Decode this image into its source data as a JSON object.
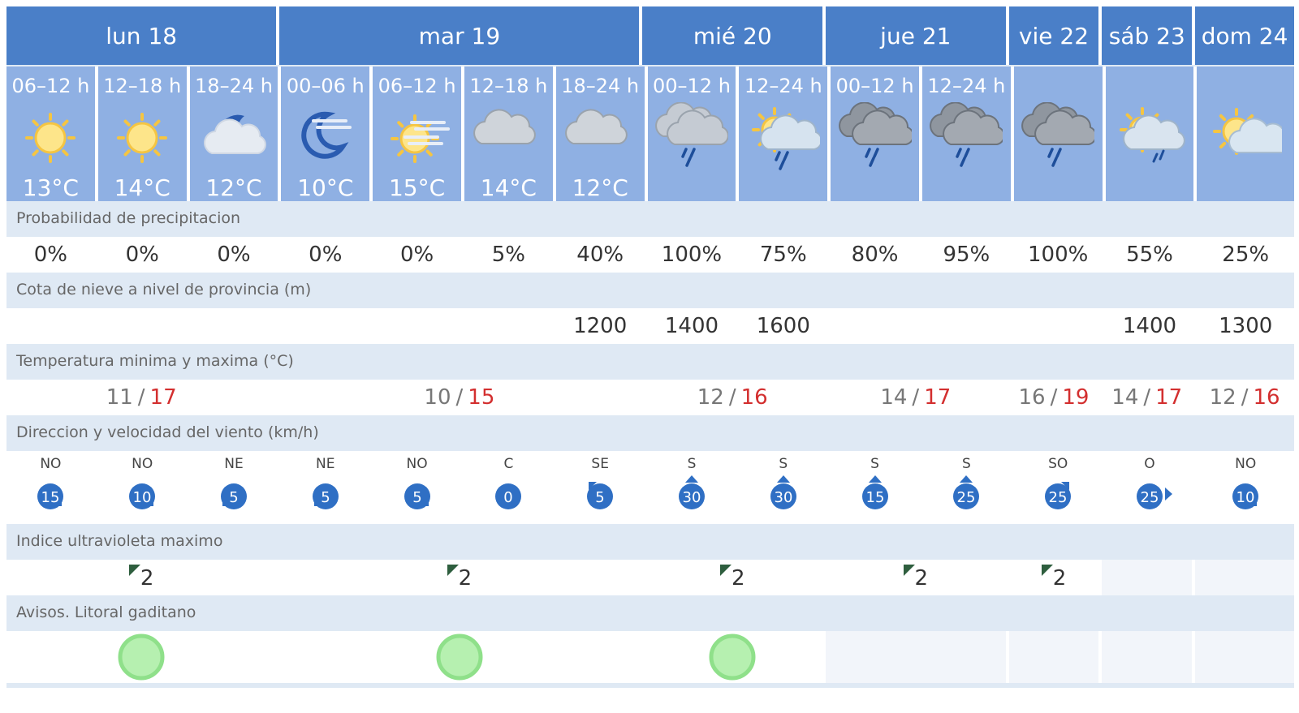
{
  "days": [
    {
      "label": "lun 18",
      "span": 3
    },
    {
      "label": "mar 19",
      "span": 4
    },
    {
      "label": "mié 20",
      "span": 2
    },
    {
      "label": "jue 21",
      "span": 2
    },
    {
      "label": "vie 22",
      "span": 1
    },
    {
      "label": "sáb 23",
      "span": 1
    },
    {
      "label": "dom 24",
      "span": 1
    }
  ],
  "periods": [
    {
      "label": "06–12 h",
      "icon": "sun-icon",
      "temp": "13°C"
    },
    {
      "label": "12–18 h",
      "icon": "sun-icon",
      "temp": "14°C"
    },
    {
      "label": "18–24 h",
      "icon": "moon-cloud-icon",
      "temp": "12°C"
    },
    {
      "label": "00–06 h",
      "icon": "moon-haze-icon",
      "temp": "10°C"
    },
    {
      "label": "06–12 h",
      "icon": "sun-haze-icon",
      "temp": "15°C"
    },
    {
      "label": "12–18 h",
      "icon": "cloud-icon",
      "temp": "14°C"
    },
    {
      "label": "18–24 h",
      "icon": "cloud-icon",
      "temp": "12°C"
    },
    {
      "label": "00–12 h",
      "icon": "cloud-rain-icon",
      "temp": ""
    },
    {
      "label": "12–24 h",
      "icon": "sun-cloud-rain-icon",
      "temp": ""
    },
    {
      "label": "00–12 h",
      "icon": "dark-cloud-rain-icon",
      "temp": ""
    },
    {
      "label": "12–24 h",
      "icon": "dark-cloud-rain-icon",
      "temp": ""
    },
    {
      "label": "",
      "icon": "dark-cloud-rain-icon",
      "temp": ""
    },
    {
      "label": "",
      "icon": "sun-cloud-drizzle-icon",
      "temp": ""
    },
    {
      "label": "",
      "icon": "sun-cloud-icon",
      "temp": ""
    }
  ],
  "sections": {
    "precip_title": "Probabilidad de precipitacion",
    "snow_title": "Cota de nieve a nivel de provincia (m)",
    "temp_title": "Temperatura minima y maxima (°C)",
    "wind_title": "Direccion y velocidad del viento (km/h)",
    "uv_title": "Indice ultravioleta maximo",
    "alerts_title": "Avisos. Litoral gaditano"
  },
  "precip": [
    "0%",
    "0%",
    "0%",
    "0%",
    "0%",
    "5%",
    "40%",
    "100%",
    "75%",
    "80%",
    "95%",
    "100%",
    "55%",
    "25%"
  ],
  "snow": [
    "",
    "",
    "",
    "",
    "",
    "",
    "1200",
    "1400",
    "1600",
    "",
    "",
    "",
    "1400",
    "1300"
  ],
  "temps": [
    {
      "min": "11",
      "max": "17",
      "sep": "/"
    },
    {
      "min": "10",
      "max": "15",
      "sep": "/"
    },
    {
      "min": "12",
      "max": "16",
      "sep": "/"
    },
    {
      "min": "14",
      "max": "17",
      "sep": "/"
    },
    {
      "min": "16",
      "max": "19",
      "sep": "/"
    },
    {
      "min": "14",
      "max": "17",
      "sep": "/"
    },
    {
      "min": "12",
      "max": "16",
      "sep": "/"
    }
  ],
  "wind": [
    {
      "dir": "NO",
      "speed": "15",
      "arrow": "se"
    },
    {
      "dir": "NO",
      "speed": "10",
      "arrow": "se"
    },
    {
      "dir": "NE",
      "speed": "5",
      "arrow": "sw"
    },
    {
      "dir": "NE",
      "speed": "5",
      "arrow": "sw"
    },
    {
      "dir": "NO",
      "speed": "5",
      "arrow": "se"
    },
    {
      "dir": "C",
      "speed": "0",
      "arrow": "none"
    },
    {
      "dir": "SE",
      "speed": "5",
      "arrow": "nw"
    },
    {
      "dir": "S",
      "speed": "30",
      "arrow": "n"
    },
    {
      "dir": "S",
      "speed": "30",
      "arrow": "n"
    },
    {
      "dir": "S",
      "speed": "15",
      "arrow": "n"
    },
    {
      "dir": "S",
      "speed": "25",
      "arrow": "n"
    },
    {
      "dir": "SO",
      "speed": "25",
      "arrow": "ne"
    },
    {
      "dir": "O",
      "speed": "25",
      "arrow": "e"
    },
    {
      "dir": "NO",
      "speed": "10",
      "arrow": "se"
    }
  ],
  "uv": [
    "2",
    "2",
    "2",
    "2",
    "2",
    "",
    ""
  ],
  "alerts": [
    "green",
    "green",
    "green",
    "",
    "",
    "",
    ""
  ],
  "colors": {
    "header": "#4a7fc8",
    "period_bg": "#8fb0e3",
    "section_bg": "#dfe9f4",
    "max_temp": "#d32f2f",
    "wind_circle": "#2f6fc4",
    "alert_green": "#9be89b",
    "uv_mark": "#2e5e3e"
  }
}
